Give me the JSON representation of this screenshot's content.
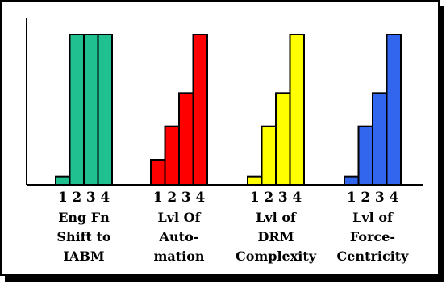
{
  "chart_data": {
    "type": "bar",
    "title": "",
    "xlabel": "",
    "ylabel": "",
    "ylim": [
      0,
      4.5
    ],
    "grid": false,
    "legend": "none",
    "groups": [
      {
        "label_lines": [
          "Eng Fn",
          "Shift to",
          "IABM"
        ],
        "ticks": [
          "1",
          "2",
          "3",
          "4"
        ],
        "values": [
          0.25,
          4.5,
          4.5,
          4.5
        ],
        "color": "#20c090"
      },
      {
        "label_lines": [
          "Lvl Of",
          "Auto-",
          "mation"
        ],
        "ticks": [
          "1",
          "2",
          "3",
          "4"
        ],
        "values": [
          0.75,
          1.75,
          2.75,
          4.5
        ],
        "color": "#ff0000"
      },
      {
        "label_lines": [
          "Lvl of",
          "DRM",
          "Complexity"
        ],
        "ticks": [
          "1",
          "2",
          "3",
          "4"
        ],
        "values": [
          0.25,
          1.75,
          2.75,
          4.5
        ],
        "color": "#ffff00"
      },
      {
        "label_lines": [
          "Lvl of",
          "Force-",
          "Centricity"
        ],
        "ticks": [
          "1",
          "2",
          "3",
          "4"
        ],
        "values": [
          0.25,
          1.75,
          2.75,
          4.5
        ],
        "color": "#3366ee"
      }
    ]
  }
}
